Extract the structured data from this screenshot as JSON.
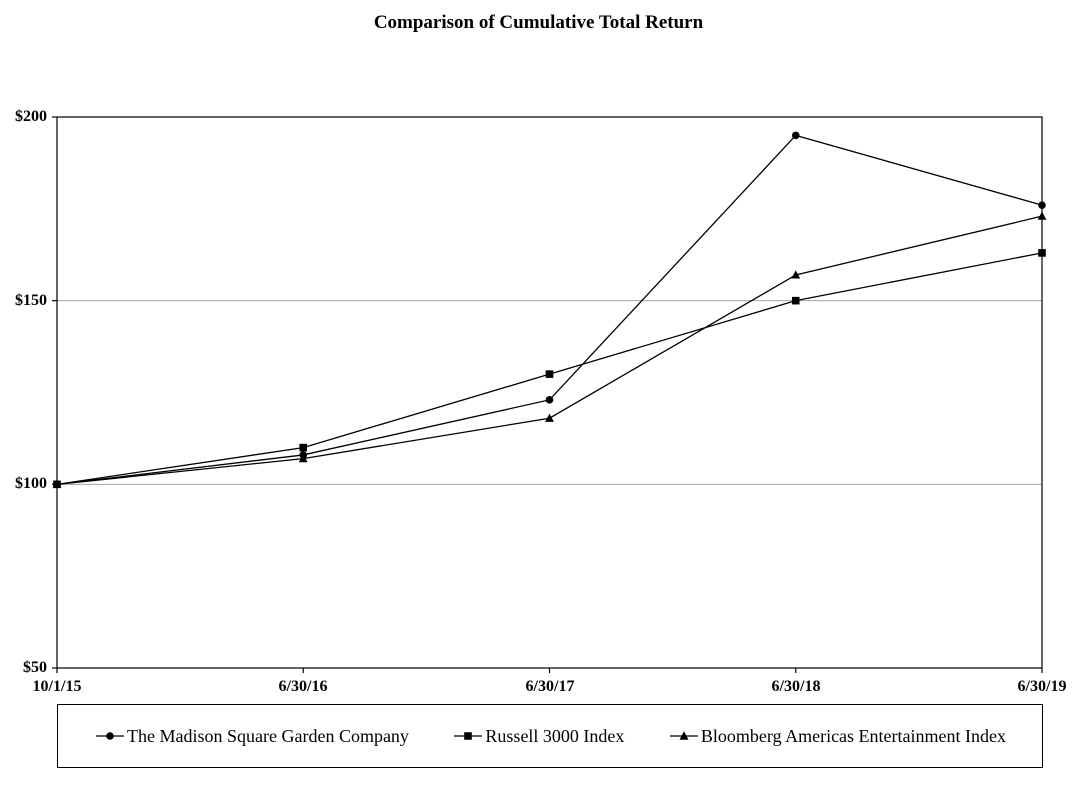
{
  "title": "Comparison of Cumulative Total Return",
  "chart_data": {
    "type": "line",
    "x": [
      "10/1/15",
      "6/30/16",
      "6/30/17",
      "6/30/18",
      "6/30/19"
    ],
    "series": [
      {
        "name": "The Madison Square Garden Company",
        "marker": "circle",
        "values": [
          100,
          108,
          123,
          195,
          176
        ]
      },
      {
        "name": "Russell 3000 Index",
        "marker": "square",
        "values": [
          100,
          110,
          130,
          150,
          163
        ]
      },
      {
        "name": "Bloomberg Americas Entertainment Index",
        "marker": "triangle",
        "values": [
          100,
          107,
          118,
          157,
          173
        ]
      }
    ],
    "yticks": [
      "$200",
      "$150",
      "$100",
      "$50"
    ],
    "ytick_values": [
      200,
      150,
      100,
      50
    ],
    "ylim": [
      50,
      200
    ],
    "grid": true,
    "legend_position": "bottom",
    "colors": {
      "series": "#000000",
      "gridline": "#a3a3a3",
      "axis": "#000000",
      "background": "#ffffff"
    }
  }
}
